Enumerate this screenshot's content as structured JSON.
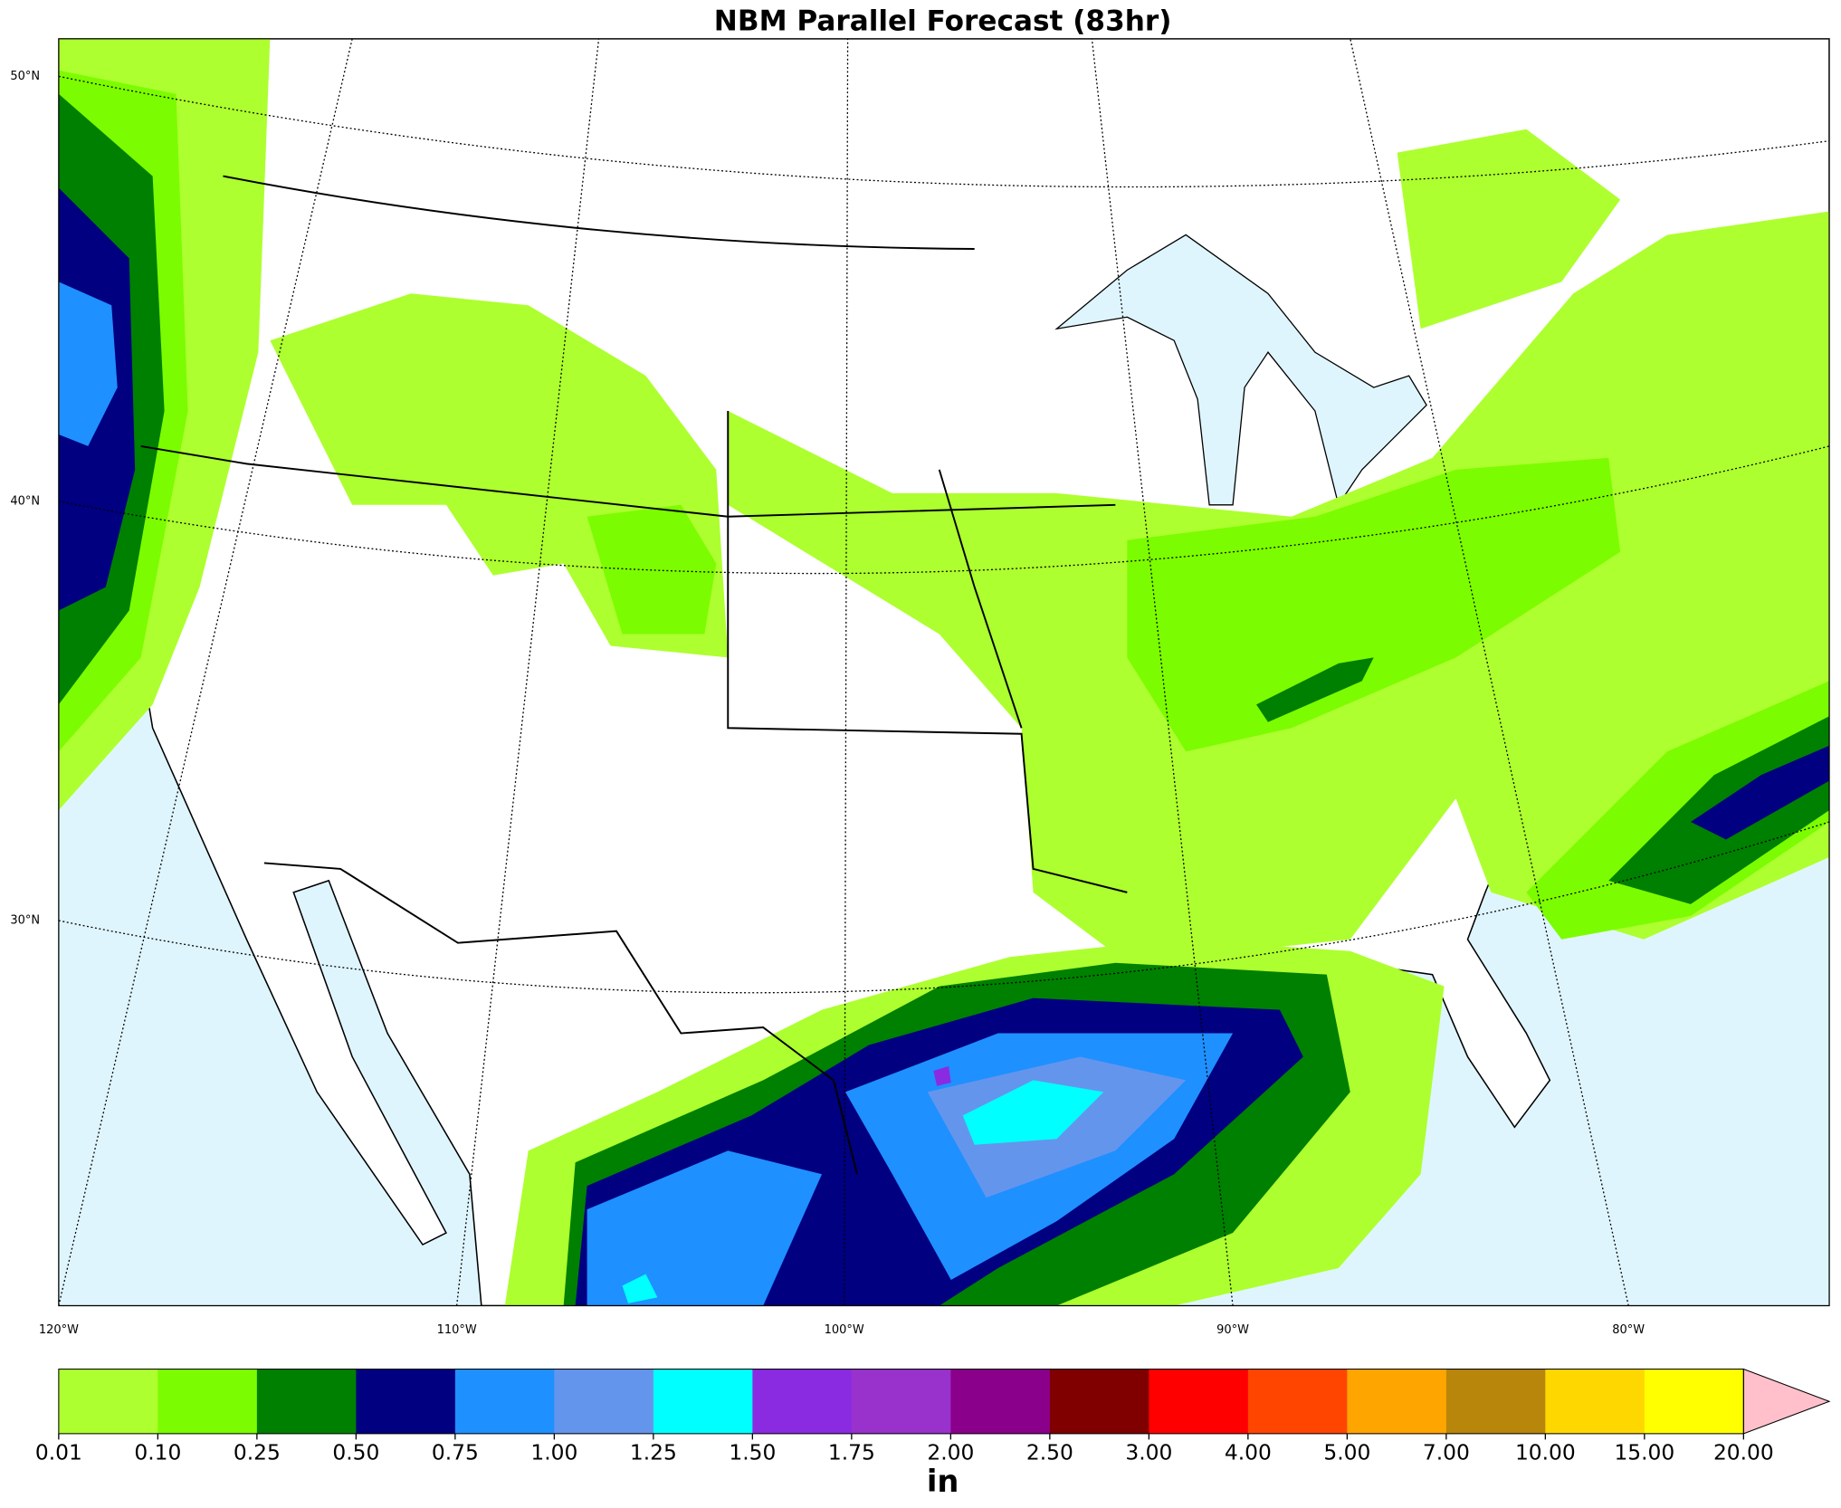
{
  "map": {
    "title": "NBM Parallel Forecast (83hr)",
    "lat_labels": [
      "50°N",
      "40°N",
      "30°N"
    ],
    "lon_labels": [
      "120°W",
      "110°W",
      "100°W",
      "90°W",
      "80°W"
    ]
  },
  "colorbar": {
    "levels": [
      {
        "value": 0.01,
        "label": "0.01"
      },
      {
        "value": 0.1,
        "label": "0.10"
      },
      {
        "value": 0.25,
        "label": "0.25"
      },
      {
        "value": 0.5,
        "label": "0.50"
      },
      {
        "value": 0.75,
        "label": "0.75"
      },
      {
        "value": 1,
        "label": "1.00"
      },
      {
        "value": 1.25,
        "label": "1.25"
      },
      {
        "value": 1.5,
        "label": "1.50"
      },
      {
        "value": 1.75,
        "label": "1.75"
      },
      {
        "value": 2,
        "label": "2.00"
      },
      {
        "value": 2.5,
        "label": "2.50"
      },
      {
        "value": 3,
        "label": "3.00"
      },
      {
        "value": 4,
        "label": "4.00"
      },
      {
        "value": 5,
        "label": "5.00"
      },
      {
        "value": 7,
        "label": "7.00"
      },
      {
        "value": 10,
        "label": "10.00"
      },
      {
        "value": 15,
        "label": "15.00"
      },
      {
        "value": 20,
        "label": "20.00"
      }
    ],
    "colors": [
      "#adff2f",
      "#7cfc00",
      "#008000",
      "#000080",
      "#1e90ff",
      "#6495ed",
      "#00ffff",
      "#8a2be2",
      "#9932cc",
      "#8b008b",
      "#800000",
      "#ff0000",
      "#ff4500",
      "#ffa500",
      "#b8860b",
      "#ffd700",
      "#ffff00"
    ],
    "extend_color": "#ffc0cb",
    "label": "in"
  }
}
